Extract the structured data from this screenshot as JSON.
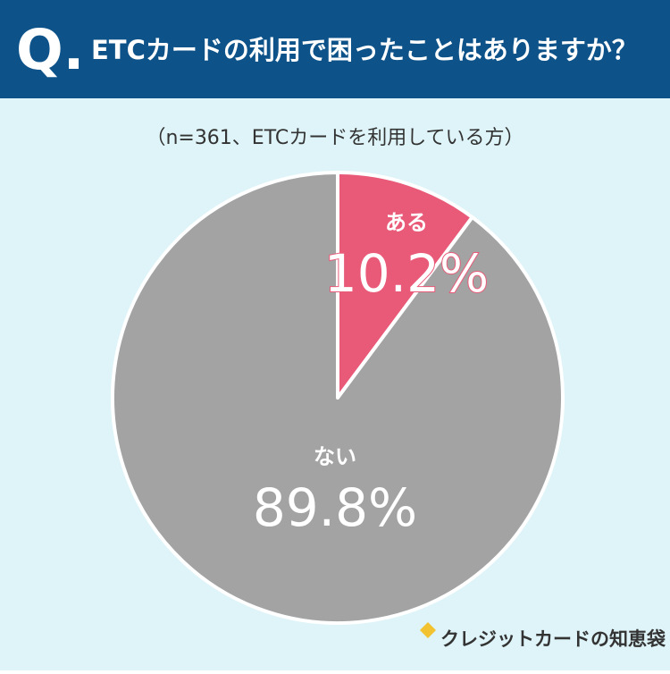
{
  "chart_data": {
    "type": "pie",
    "question_mark": "Q.",
    "title": "ETCカードの利用で困ったことはありますか？",
    "subtitle": "（n=361、ETCカードを利用している方）",
    "categories": [
      "ある",
      "ない"
    ],
    "values": [
      10.2,
      89.8
    ],
    "value_labels": [
      "10.2%",
      "89.8%"
    ],
    "colors": [
      "#e95a78",
      "#a3a3a3"
    ],
    "brand": "クレジットカードの知恵袋"
  }
}
